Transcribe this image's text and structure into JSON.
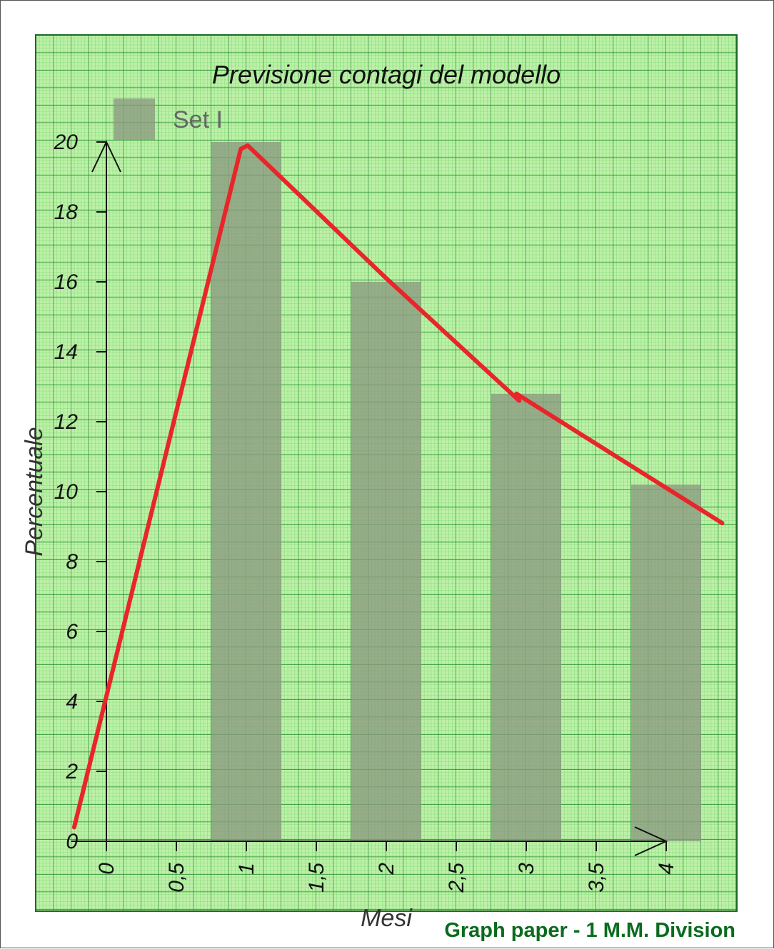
{
  "chart_data": {
    "type": "bar",
    "title": "Previsione contagi del modello",
    "xlabel": "Mesi",
    "ylabel": "Percentuale",
    "xlim": [
      -0.5,
      4.5
    ],
    "ylim": [
      0,
      20
    ],
    "x_ticks": [
      0,
      0.5,
      1,
      1.5,
      2,
      2.5,
      3,
      3.5,
      4
    ],
    "x_tick_labels": [
      "0",
      "0,5",
      "1",
      "1,5",
      "2",
      "2,5",
      "3",
      "3,5",
      "4"
    ],
    "y_ticks": [
      0,
      2,
      4,
      6,
      8,
      10,
      12,
      14,
      16,
      18,
      20
    ],
    "y_tick_labels": [
      "0",
      "2",
      "4",
      "6",
      "8",
      "10",
      "12",
      "14",
      "16",
      "18",
      "20"
    ],
    "legend": {
      "position": "top-left",
      "entries": [
        "Set I"
      ]
    },
    "series": [
      {
        "name": "Set I",
        "color": "#8a9a80",
        "x": [
          1,
          2,
          3,
          4
        ],
        "values": [
          20,
          16,
          12.8,
          10.2
        ],
        "bar_width": 0.5
      }
    ],
    "annotation_line": {
      "color": "#e8262a",
      "points": [
        [
          -0.23,
          0.4
        ],
        [
          0.96,
          19.8
        ],
        [
          1.01,
          19.9
        ],
        [
          2.0,
          16.1
        ],
        [
          2.95,
          12.6
        ],
        [
          2.93,
          12.8
        ],
        [
          4.4,
          9.1
        ]
      ]
    },
    "background": "graph paper",
    "grid": true
  },
  "watermark": "Graph paper - 1 M.M. Division"
}
